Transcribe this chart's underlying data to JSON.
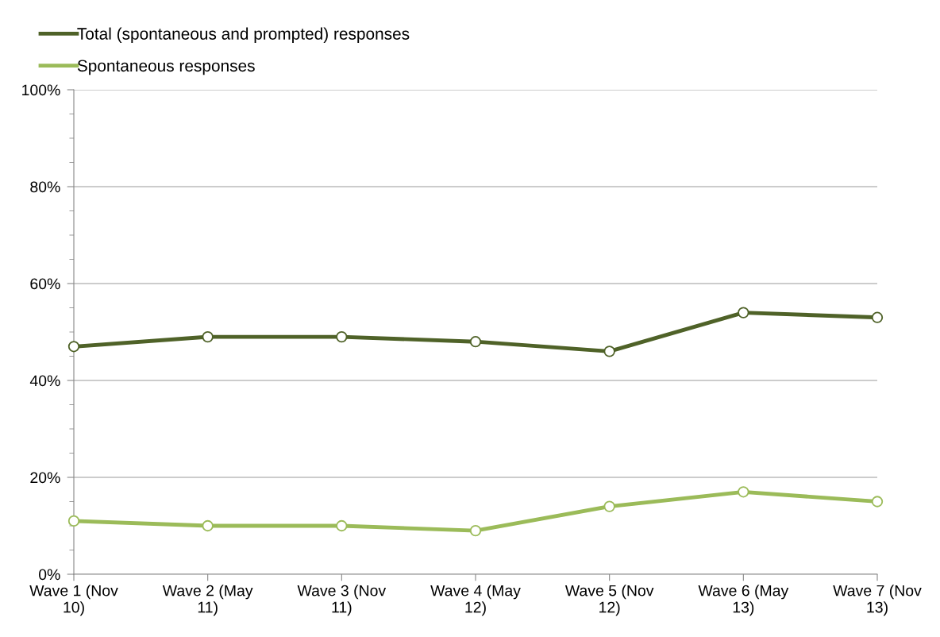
{
  "chart_data": {
    "type": "line",
    "categories": [
      "Wave 1 (Nov 10)",
      "Wave 2 (May 11)",
      "Wave 3 (Nov 11)",
      "Wave 4 (May 12)",
      "Wave 5 (Nov 12)",
      "Wave 6 (May 13)",
      "Wave 7 (Nov 13)"
    ],
    "series": [
      {
        "name": "Total (spontaneous and prompted) responses",
        "color": "#4f6228",
        "values": [
          47,
          49,
          49,
          48,
          46,
          54,
          53
        ]
      },
      {
        "name": "Spontaneous responses",
        "color": "#9bbb59",
        "values": [
          11,
          10,
          10,
          9,
          14,
          17,
          15
        ]
      }
    ],
    "ylim": [
      0,
      100
    ],
    "yticks": [
      {
        "value": 0,
        "label": "0%"
      },
      {
        "value": 20,
        "label": "20%"
      },
      {
        "value": 40,
        "label": "40%"
      },
      {
        "value": 60,
        "label": "60%"
      },
      {
        "value": 80,
        "label": "80%"
      },
      {
        "value": 100,
        "label": "100%"
      }
    ],
    "grid": "y",
    "legend": "top left",
    "marker": "circle"
  }
}
